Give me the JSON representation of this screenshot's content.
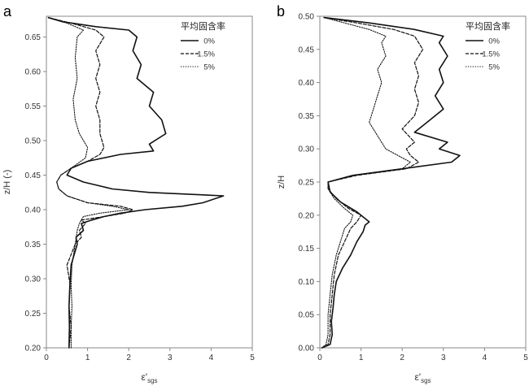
{
  "chart_data": [
    {
      "panel": "a",
      "type": "line",
      "xlabel": "ε'",
      "xlabel_sub": "sgs",
      "ylabel": "z/H (-)",
      "xlim": [
        0,
        5
      ],
      "ylim": [
        0.2,
        0.68
      ],
      "xticks": [
        0,
        1,
        2,
        3,
        4,
        5
      ],
      "yticks": [
        0.2,
        0.25,
        0.3,
        0.35,
        0.4,
        0.45,
        0.5,
        0.55,
        0.6,
        0.65
      ],
      "ytick_labels": [
        "0.20",
        "0.25",
        "0.30",
        "0.35",
        "0.40",
        "0.45",
        "0.50",
        "0.55",
        "0.60",
        "0.65"
      ],
      "legend_title": "平均固含率",
      "legend_position": "top-right",
      "series": [
        {
          "name": "0%",
          "style": "solid",
          "points": [
            [
              0.55,
              0.2
            ],
            [
              0.56,
              0.23
            ],
            [
              0.55,
              0.26
            ],
            [
              0.57,
              0.29
            ],
            [
              0.6,
              0.32
            ],
            [
              0.75,
              0.35
            ],
            [
              0.72,
              0.36
            ],
            [
              0.9,
              0.37
            ],
            [
              0.85,
              0.38
            ],
            [
              1.1,
              0.385
            ],
            [
              1.4,
              0.39
            ],
            [
              1.8,
              0.395
            ],
            [
              2.4,
              0.4
            ],
            [
              3.3,
              0.405
            ],
            [
              3.8,
              0.41
            ],
            [
              4.3,
              0.42
            ],
            [
              2.5,
              0.425
            ],
            [
              1.6,
              0.43
            ],
            [
              0.9,
              0.44
            ],
            [
              0.5,
              0.45
            ],
            [
              0.6,
              0.46
            ],
            [
              1.0,
              0.47
            ],
            [
              1.8,
              0.48
            ],
            [
              2.6,
              0.485
            ],
            [
              2.5,
              0.495
            ],
            [
              2.9,
              0.51
            ],
            [
              2.8,
              0.53
            ],
            [
              2.5,
              0.55
            ],
            [
              2.6,
              0.57
            ],
            [
              2.2,
              0.59
            ],
            [
              2.3,
              0.61
            ],
            [
              2.1,
              0.63
            ],
            [
              2.2,
              0.65
            ],
            [
              2.0,
              0.66
            ],
            [
              1.2,
              0.665
            ],
            [
              0.4,
              0.672
            ],
            [
              0.05,
              0.678
            ]
          ]
        },
        {
          "name": "1.5%",
          "style": "dashed",
          "points": [
            [
              0.55,
              0.2
            ],
            [
              0.6,
              0.23
            ],
            [
              0.55,
              0.26
            ],
            [
              0.58,
              0.29
            ],
            [
              0.5,
              0.32
            ],
            [
              0.7,
              0.35
            ],
            [
              0.85,
              0.36
            ],
            [
              0.8,
              0.37
            ],
            [
              0.95,
              0.38
            ],
            [
              0.85,
              0.385
            ],
            [
              1.4,
              0.39
            ],
            [
              1.9,
              0.395
            ],
            [
              2.1,
              0.4
            ],
            [
              1.8,
              0.405
            ],
            [
              1.0,
              0.41
            ],
            [
              0.5,
              0.42
            ],
            [
              0.3,
              0.43
            ],
            [
              0.25,
              0.44
            ],
            [
              0.35,
              0.45
            ],
            [
              0.6,
              0.46
            ],
            [
              1.0,
              0.47
            ],
            [
              1.3,
              0.48
            ],
            [
              1.4,
              0.49
            ],
            [
              1.3,
              0.51
            ],
            [
              1.3,
              0.53
            ],
            [
              1.2,
              0.55
            ],
            [
              1.3,
              0.57
            ],
            [
              1.2,
              0.59
            ],
            [
              1.3,
              0.61
            ],
            [
              1.2,
              0.63
            ],
            [
              1.4,
              0.65
            ],
            [
              1.2,
              0.66
            ],
            [
              0.6,
              0.67
            ],
            [
              0.05,
              0.678
            ]
          ]
        },
        {
          "name": "5%",
          "style": "dotted",
          "points": [
            [
              0.6,
              0.2
            ],
            [
              0.6,
              0.23
            ],
            [
              0.62,
              0.26
            ],
            [
              0.6,
              0.29
            ],
            [
              0.62,
              0.32
            ],
            [
              0.7,
              0.35
            ],
            [
              0.75,
              0.37
            ],
            [
              0.8,
              0.38
            ],
            [
              0.9,
              0.39
            ],
            [
              1.3,
              0.395
            ],
            [
              2.0,
              0.4
            ],
            [
              1.6,
              0.405
            ],
            [
              1.0,
              0.41
            ],
            [
              0.5,
              0.42
            ],
            [
              0.3,
              0.43
            ],
            [
              0.25,
              0.44
            ],
            [
              0.35,
              0.45
            ],
            [
              0.6,
              0.46
            ],
            [
              0.95,
              0.475
            ],
            [
              1.0,
              0.49
            ],
            [
              0.8,
              0.51
            ],
            [
              0.7,
              0.53
            ],
            [
              0.65,
              0.56
            ],
            [
              0.75,
              0.59
            ],
            [
              0.7,
              0.62
            ],
            [
              0.75,
              0.65
            ],
            [
              0.9,
              0.66
            ],
            [
              0.5,
              0.67
            ],
            [
              0.05,
              0.678
            ]
          ]
        }
      ]
    },
    {
      "panel": "b",
      "type": "line",
      "xlabel": "ε'",
      "xlabel_sub": "sgs",
      "ylabel": "z/H",
      "xlim": [
        0,
        5
      ],
      "ylim": [
        0,
        0.5
      ],
      "xticks": [
        0,
        1,
        2,
        3,
        4,
        5
      ],
      "yticks": [
        0,
        0.05,
        0.1,
        0.15,
        0.2,
        0.25,
        0.3,
        0.35,
        0.4,
        0.45,
        0.5
      ],
      "ytick_labels": [
        "0.00",
        "0.05",
        "0.10",
        "0.15",
        "0.20",
        "0.25",
        "0.30",
        "0.35",
        "0.40",
        "0.45",
        "0.50"
      ],
      "legend_title": "平均固含率",
      "legend_position": "top-right",
      "series": [
        {
          "name": "0%",
          "style": "solid",
          "points": [
            [
              0.05,
              0.0
            ],
            [
              0.25,
              0.005
            ],
            [
              0.3,
              0.02
            ],
            [
              0.28,
              0.04
            ],
            [
              0.32,
              0.06
            ],
            [
              0.35,
              0.08
            ],
            [
              0.4,
              0.1
            ],
            [
              0.55,
              0.12
            ],
            [
              0.75,
              0.14
            ],
            [
              0.9,
              0.16
            ],
            [
              1.05,
              0.175
            ],
            [
              1.1,
              0.185
            ],
            [
              1.2,
              0.19
            ],
            [
              0.9,
              0.205
            ],
            [
              0.5,
              0.22
            ],
            [
              0.25,
              0.235
            ],
            [
              0.2,
              0.25
            ],
            [
              0.8,
              0.26
            ],
            [
              2.0,
              0.27
            ],
            [
              3.2,
              0.28
            ],
            [
              3.4,
              0.29
            ],
            [
              2.9,
              0.3
            ],
            [
              3.1,
              0.31
            ],
            [
              2.3,
              0.325
            ],
            [
              2.6,
              0.34
            ],
            [
              3.0,
              0.36
            ],
            [
              2.8,
              0.38
            ],
            [
              3.0,
              0.4
            ],
            [
              2.9,
              0.42
            ],
            [
              3.1,
              0.44
            ],
            [
              2.9,
              0.46
            ],
            [
              3.0,
              0.47
            ],
            [
              2.3,
              0.48
            ],
            [
              1.2,
              0.49
            ],
            [
              0.1,
              0.498
            ]
          ]
        },
        {
          "name": "1.5%",
          "style": "dashed",
          "points": [
            [
              0.05,
              0.0
            ],
            [
              0.2,
              0.005
            ],
            [
              0.25,
              0.02
            ],
            [
              0.25,
              0.05
            ],
            [
              0.3,
              0.08
            ],
            [
              0.35,
              0.11
            ],
            [
              0.45,
              0.14
            ],
            [
              0.6,
              0.16
            ],
            [
              0.75,
              0.18
            ],
            [
              0.9,
              0.19
            ],
            [
              1.0,
              0.2
            ],
            [
              0.7,
              0.21
            ],
            [
              0.4,
              0.225
            ],
            [
              0.2,
              0.24
            ],
            [
              0.2,
              0.25
            ],
            [
              0.9,
              0.26
            ],
            [
              2.1,
              0.27
            ],
            [
              2.4,
              0.28
            ],
            [
              2.2,
              0.29
            ],
            [
              2.1,
              0.3
            ],
            [
              2.3,
              0.31
            ],
            [
              2.0,
              0.33
            ],
            [
              2.3,
              0.35
            ],
            [
              2.4,
              0.37
            ],
            [
              2.3,
              0.39
            ],
            [
              2.4,
              0.41
            ],
            [
              2.3,
              0.43
            ],
            [
              2.5,
              0.45
            ],
            [
              2.3,
              0.47
            ],
            [
              1.8,
              0.48
            ],
            [
              0.9,
              0.49
            ],
            [
              0.1,
              0.498
            ]
          ]
        },
        {
          "name": "5%",
          "style": "dotted",
          "points": [
            [
              0.05,
              0.0
            ],
            [
              0.15,
              0.005
            ],
            [
              0.2,
              0.02
            ],
            [
              0.2,
              0.05
            ],
            [
              0.25,
              0.08
            ],
            [
              0.3,
              0.11
            ],
            [
              0.4,
              0.14
            ],
            [
              0.5,
              0.16
            ],
            [
              0.6,
              0.18
            ],
            [
              0.75,
              0.19
            ],
            [
              0.8,
              0.2
            ],
            [
              0.6,
              0.21
            ],
            [
              0.35,
              0.225
            ],
            [
              0.2,
              0.24
            ],
            [
              0.2,
              0.25
            ],
            [
              0.8,
              0.26
            ],
            [
              2.0,
              0.27
            ],
            [
              2.2,
              0.28
            ],
            [
              1.9,
              0.29
            ],
            [
              1.6,
              0.3
            ],
            [
              1.4,
              0.32
            ],
            [
              1.2,
              0.34
            ],
            [
              1.3,
              0.36
            ],
            [
              1.4,
              0.38
            ],
            [
              1.5,
              0.4
            ],
            [
              1.4,
              0.42
            ],
            [
              1.6,
              0.44
            ],
            [
              1.5,
              0.46
            ],
            [
              1.6,
              0.47
            ],
            [
              1.2,
              0.48
            ],
            [
              0.6,
              0.49
            ],
            [
              0.1,
              0.498
            ]
          ]
        }
      ]
    }
  ]
}
